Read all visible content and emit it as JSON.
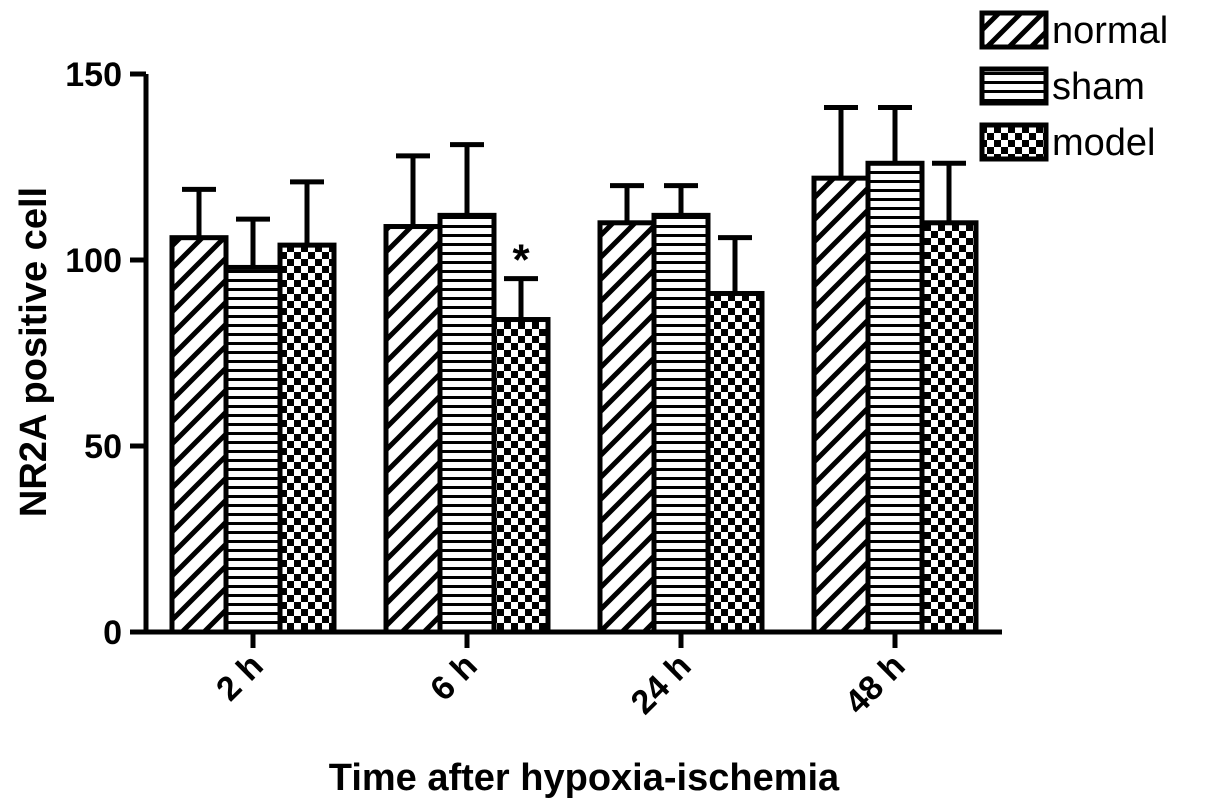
{
  "chart_data": {
    "type": "bar",
    "categories": [
      "2 h",
      "6 h",
      "24 h",
      "48 h"
    ],
    "series": [
      {
        "name": "normal",
        "pattern": "diagonal-hatch",
        "values": [
          106,
          109,
          110,
          122
        ],
        "errors": [
          13,
          19,
          10,
          19
        ]
      },
      {
        "name": "sham",
        "pattern": "horizontal-stripes",
        "values": [
          98,
          112,
          112,
          126
        ],
        "errors": [
          13,
          19,
          8,
          15
        ]
      },
      {
        "name": "model",
        "pattern": "checkerboard",
        "values": [
          104,
          84,
          91,
          110
        ],
        "errors": [
          17,
          11,
          15,
          16
        ]
      }
    ],
    "annotations": [
      {
        "text": "*",
        "category": "6 h",
        "series": "model"
      }
    ],
    "xlabel": "Time after hypoxia-ischemia",
    "ylabel": "NR2A positive cell",
    "ylim": [
      0,
      150
    ],
    "yticks": [
      0,
      50,
      100,
      150
    ],
    "grid": false,
    "legend_position": "top-right",
    "colors": {
      "stroke": "#000000",
      "fill": "#ffffff"
    }
  }
}
